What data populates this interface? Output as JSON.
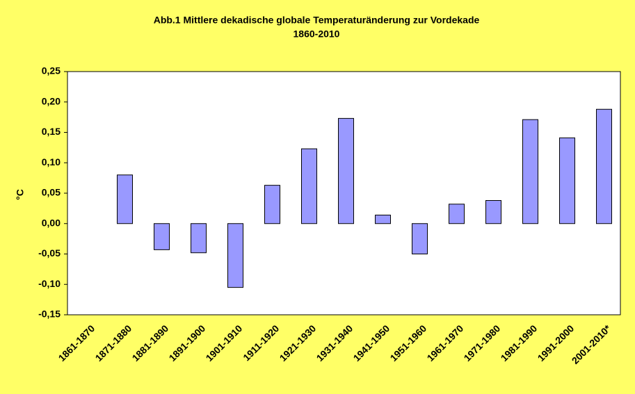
{
  "chart_data": {
    "type": "bar",
    "title": "Abb.1 Mittlere dekadische globale Temperaturänderung zur Vordekade",
    "subtitle": "1860-2010",
    "y_label": "°C",
    "categories": [
      "1861-1870",
      "1871-1880",
      "1881-1890",
      "1891-1900",
      "1901-1910",
      "1911-1920",
      "1921-1930",
      "1931-1940",
      "1941-1950",
      "1951-1960",
      "1961-1970",
      "1971-1980",
      "1981-1990",
      "1991-2000",
      "2001-2010*"
    ],
    "values": [
      null,
      0.08,
      -0.043,
      -0.048,
      -0.105,
      0.063,
      0.123,
      0.173,
      0.014,
      -0.05,
      0.032,
      0.038,
      0.171,
      0.141,
      0.188
    ],
    "color": "#9999ff",
    "ylim": [
      -0.15,
      0.25
    ],
    "yticks": [
      {
        "value": -0.15,
        "label": "-0,15"
      },
      {
        "value": -0.1,
        "label": "-0,10"
      },
      {
        "value": -0.05,
        "label": "-0,05"
      },
      {
        "value": 0,
        "label": "0,00"
      },
      {
        "value": 0.05,
        "label": "0,05"
      },
      {
        "value": 0.1,
        "label": "0,10"
      },
      {
        "value": 0.15,
        "label": "0,15"
      },
      {
        "value": 0.2,
        "label": "0,20"
      },
      {
        "value": 0.25,
        "label": "0,25"
      }
    ],
    "grid": false
  }
}
